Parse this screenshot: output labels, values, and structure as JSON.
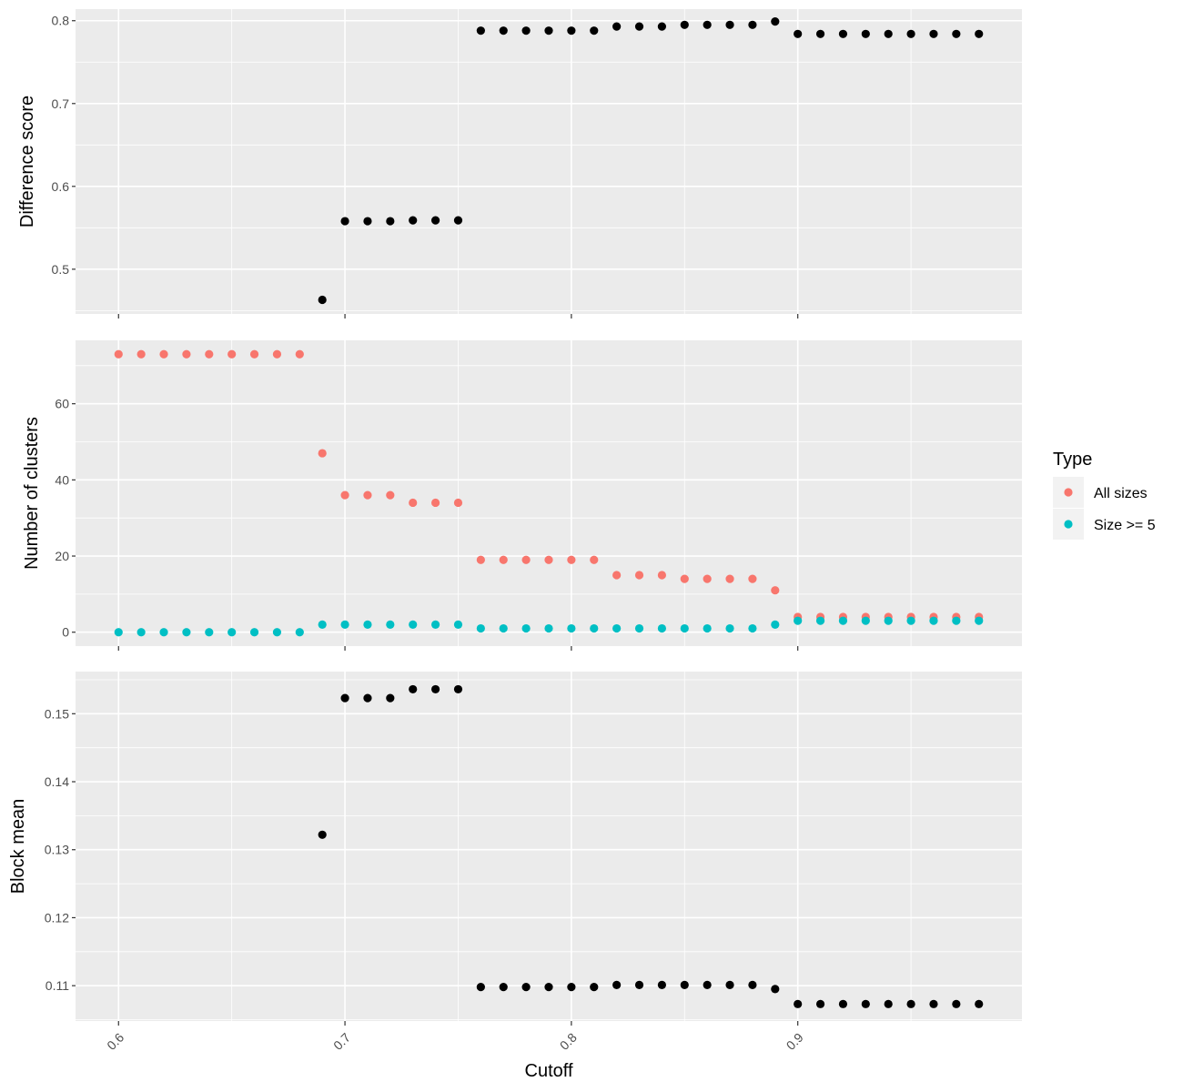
{
  "chart_data": {
    "type": "scatter",
    "xlabel": "Cutoff",
    "x_ticks": [
      "0.6",
      "0.7",
      "0.8",
      "0.9"
    ],
    "xlim": [
      0.581,
      0.999
    ],
    "legend": {
      "title": "Type",
      "placement": "right",
      "entries": [
        {
          "label": "All sizes",
          "color": "#F8766D"
        },
        {
          "label": "Size >= 5",
          "color": "#00BFC4"
        }
      ]
    },
    "panels": [
      {
        "ylabel": "Difference score",
        "ylim": [
          0.446,
          0.814
        ],
        "y_ticks": [
          "0.5",
          "0.6",
          "0.7",
          "0.8"
        ],
        "y_tick_values": [
          0.5,
          0.6,
          0.7,
          0.8
        ],
        "series": [
          {
            "color": "#000000",
            "x": [
              0.69,
              0.7,
              0.71,
              0.72,
              0.73,
              0.74,
              0.75,
              0.76,
              0.77,
              0.78,
              0.79,
              0.8,
              0.81,
              0.82,
              0.83,
              0.84,
              0.85,
              0.86,
              0.87,
              0.88,
              0.89,
              0.9,
              0.91,
              0.92,
              0.93,
              0.94,
              0.95,
              0.96,
              0.97,
              0.98
            ],
            "y": [
              0.463,
              0.558,
              0.558,
              0.558,
              0.559,
              0.559,
              0.559,
              0.788,
              0.788,
              0.788,
              0.788,
              0.788,
              0.788,
              0.793,
              0.793,
              0.793,
              0.795,
              0.795,
              0.795,
              0.795,
              0.799,
              0.784,
              0.784,
              0.784,
              0.784,
              0.784,
              0.784,
              0.784,
              0.784,
              0.784
            ]
          }
        ]
      },
      {
        "ylabel": "Number of clusters",
        "ylim": [
          -3.65,
          76.65
        ],
        "y_ticks": [
          "0",
          "20",
          "40",
          "60"
        ],
        "y_tick_values": [
          0,
          20,
          40,
          60
        ],
        "series": [
          {
            "name": "All sizes",
            "color": "#F8766D",
            "x": [
              0.6,
              0.61,
              0.62,
              0.63,
              0.64,
              0.65,
              0.66,
              0.67,
              0.68,
              0.69,
              0.7,
              0.71,
              0.72,
              0.73,
              0.74,
              0.75,
              0.76,
              0.77,
              0.78,
              0.79,
              0.8,
              0.81,
              0.82,
              0.83,
              0.84,
              0.85,
              0.86,
              0.87,
              0.88,
              0.89,
              0.9,
              0.91,
              0.92,
              0.93,
              0.94,
              0.95,
              0.96,
              0.97,
              0.98
            ],
            "y": [
              73,
              73,
              73,
              73,
              73,
              73,
              73,
              73,
              73,
              47,
              36,
              36,
              36,
              34,
              34,
              34,
              19,
              19,
              19,
              19,
              19,
              19,
              15,
              15,
              15,
              14,
              14,
              14,
              14,
              11,
              4,
              4,
              4,
              4,
              4,
              4,
              4,
              4,
              4
            ]
          },
          {
            "name": "Size >= 5",
            "color": "#00BFC4",
            "x": [
              0.6,
              0.61,
              0.62,
              0.63,
              0.64,
              0.65,
              0.66,
              0.67,
              0.68,
              0.69,
              0.7,
              0.71,
              0.72,
              0.73,
              0.74,
              0.75,
              0.76,
              0.77,
              0.78,
              0.79,
              0.8,
              0.81,
              0.82,
              0.83,
              0.84,
              0.85,
              0.86,
              0.87,
              0.88,
              0.89,
              0.9,
              0.91,
              0.92,
              0.93,
              0.94,
              0.95,
              0.96,
              0.97,
              0.98
            ],
            "y": [
              0,
              0,
              0,
              0,
              0,
              0,
              0,
              0,
              0,
              2,
              2,
              2,
              2,
              2,
              2,
              2,
              1,
              1,
              1,
              1,
              1,
              1,
              1,
              1,
              1,
              1,
              1,
              1,
              1,
              2,
              3,
              3,
              3,
              3,
              3,
              3,
              3,
              3,
              3
            ]
          }
        ]
      },
      {
        "ylabel": "Block mean",
        "ylim": [
          0.1048,
          0.1562
        ],
        "y_ticks": [
          "0.11",
          "0.12",
          "0.13",
          "0.14",
          "0.15"
        ],
        "y_tick_values": [
          0.11,
          0.12,
          0.13,
          0.14,
          0.15
        ],
        "series": [
          {
            "color": "#000000",
            "x": [
              0.69,
              0.7,
              0.71,
              0.72,
              0.73,
              0.74,
              0.75,
              0.76,
              0.77,
              0.78,
              0.79,
              0.8,
              0.81,
              0.82,
              0.83,
              0.84,
              0.85,
              0.86,
              0.87,
              0.88,
              0.89,
              0.9,
              0.91,
              0.92,
              0.93,
              0.94,
              0.95,
              0.96,
              0.97,
              0.98
            ],
            "y": [
              0.1322,
              0.1523,
              0.1523,
              0.1523,
              0.1536,
              0.1536,
              0.1536,
              0.1098,
              0.1098,
              0.1098,
              0.1098,
              0.1098,
              0.1098,
              0.1101,
              0.1101,
              0.1101,
              0.1101,
              0.1101,
              0.1101,
              0.1101,
              0.1095,
              0.1073,
              0.1073,
              0.1073,
              0.1073,
              0.1073,
              0.1073,
              0.1073,
              0.1073,
              0.1073
            ]
          }
        ]
      }
    ]
  }
}
